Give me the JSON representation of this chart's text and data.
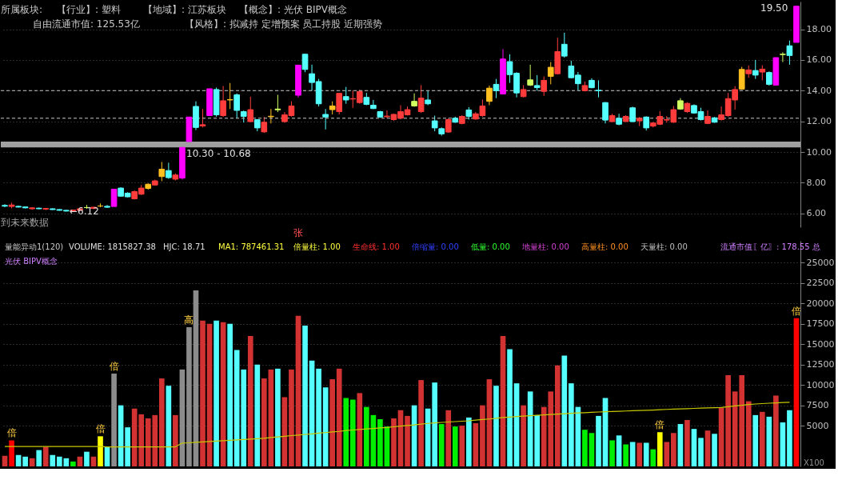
{
  "chart_data": [
    {
      "type": "candlestick",
      "categories": [
        null,
        null,
        null,
        null,
        null,
        null,
        null,
        null,
        null,
        null,
        null,
        null,
        null,
        null,
        null,
        null,
        null,
        null,
        null,
        null,
        null,
        null,
        null,
        null,
        null,
        null,
        null,
        null,
        null,
        null,
        null,
        null,
        null,
        null,
        null,
        null,
        null,
        null,
        null,
        null,
        null,
        null,
        null,
        null,
        null,
        null,
        null,
        null,
        null,
        null,
        null,
        null,
        null,
        null,
        null,
        null,
        null,
        null,
        null,
        null,
        null,
        null,
        null,
        null,
        null,
        null,
        null,
        null,
        null,
        null,
        null,
        null,
        null,
        null,
        null,
        null,
        null,
        null,
        null,
        null,
        null,
        null,
        null,
        null,
        null,
        null,
        null,
        null,
        null,
        null,
        null,
        null,
        null,
        null,
        null,
        null,
        null,
        null,
        null,
        null,
        null,
        null,
        null,
        null,
        null,
        null,
        null,
        null,
        null,
        null,
        null,
        null,
        null,
        null,
        null,
        null,
        null
      ],
      "ohlc": [
        [
          6.52,
          6.6,
          6.4,
          6.47
        ],
        [
          6.45,
          6.7,
          6.33,
          6.55
        ],
        [
          6.46,
          6.5,
          6.38,
          6.41
        ],
        [
          6.42,
          6.45,
          6.33,
          6.36
        ],
        [
          6.3,
          6.4,
          6.25,
          6.36
        ],
        [
          6.34,
          6.38,
          6.27,
          6.3
        ],
        [
          6.28,
          6.36,
          6.22,
          6.32
        ],
        [
          6.3,
          6.33,
          6.22,
          6.25
        ],
        [
          6.25,
          6.28,
          6.17,
          6.2
        ],
        [
          6.2,
          6.22,
          6.12,
          6.15
        ],
        [
          6.16,
          6.25,
          6.14,
          6.22
        ],
        [
          6.2,
          6.33,
          6.16,
          6.3
        ],
        [
          6.38,
          6.55,
          6.3,
          6.38
        ],
        [
          6.32,
          6.42,
          6.28,
          6.4
        ],
        [
          6.48,
          6.65,
          6.4,
          6.48
        ],
        [
          6.46,
          6.55,
          6.36,
          6.4
        ],
        [
          6.45,
          7.58,
          6.45,
          7.58
        ],
        [
          7.65,
          7.7,
          7.09,
          7.12
        ],
        [
          7.32,
          7.38,
          7.05,
          7.08
        ],
        [
          6.95,
          7.5,
          6.9,
          7.42
        ],
        [
          7.25,
          7.85,
          7.2,
          7.65
        ],
        [
          7.63,
          7.95,
          7.55,
          7.9
        ],
        [
          7.85,
          8.2,
          7.8,
          8.12
        ],
        [
          8.4,
          9.35,
          8.1,
          8.88
        ],
        [
          8.79,
          9.3,
          8.25,
          8.33
        ],
        [
          8.23,
          8.6,
          8.15,
          8.5
        ],
        [
          8.3,
          10.3,
          8.2,
          10.3
        ],
        [
          10.68,
          12.28,
          10.68,
          12.28
        ],
        [
          12.97,
          13.3,
          11.43,
          11.6
        ],
        [
          11.7,
          12.8,
          11.6,
          11.78
        ],
        [
          12.37,
          14.12,
          12.37,
          14.12
        ],
        [
          14.07,
          14.2,
          12.3,
          12.42
        ],
        [
          12.37,
          14.3,
          12.28,
          13.34
        ],
        [
          13.39,
          14.5,
          12.8,
          13.42
        ],
        [
          13.73,
          13.82,
          12.2,
          12.71
        ],
        [
          12.63,
          12.7,
          11.92,
          12.32
        ],
        [
          11.98,
          13.61,
          11.95,
          12.76
        ],
        [
          12.11,
          12.15,
          11.35,
          11.57
        ],
        [
          11.31,
          12.28,
          11.25,
          11.94
        ],
        [
          12.3,
          12.8,
          11.86,
          12.33
        ],
        [
          12.75,
          13.73,
          12.6,
          12.8
        ],
        [
          11.98,
          12.6,
          11.9,
          12.42
        ],
        [
          12.37,
          13.3,
          12.3,
          13.0
        ],
        [
          13.7,
          15.66,
          13.55,
          15.66
        ],
        [
          16.37,
          16.4,
          15.2,
          15.38
        ],
        [
          15.1,
          15.69,
          13.99,
          14.53
        ],
        [
          14.59,
          14.76,
          12.97,
          13.14
        ],
        [
          12.45,
          12.8,
          11.47,
          12.28
        ],
        [
          12.76,
          13.3,
          12.45,
          13.0
        ],
        [
          12.63,
          13.82,
          12.45,
          13.82
        ],
        [
          13.61,
          14.24,
          13.14,
          13.39
        ],
        [
          13.45,
          13.99,
          12.88,
          13.48
        ],
        [
          13.22,
          14.05,
          13.15,
          13.94
        ],
        [
          13.56,
          13.85,
          13.05,
          13.1
        ],
        [
          13.05,
          13.39,
          12.8,
          12.83
        ],
        [
          12.63,
          12.68,
          12.22,
          12.28
        ],
        [
          12.3,
          12.71,
          12.2,
          12.34
        ],
        [
          12.11,
          12.5,
          12.03,
          12.45
        ],
        [
          12.2,
          13.05,
          12.15,
          12.63
        ],
        [
          12.42,
          12.97,
          12.38,
          12.76
        ],
        [
          13.0,
          13.82,
          12.95,
          13.3
        ],
        [
          12.63,
          14.36,
          12.55,
          13.51
        ],
        [
          13.39,
          13.99,
          13.05,
          13.14
        ],
        [
          12.03,
          12.37,
          11.35,
          11.57
        ],
        [
          11.52,
          11.6,
          11.06,
          11.18
        ],
        [
          11.3,
          12.2,
          11.25,
          12.11
        ],
        [
          12.2,
          12.3,
          11.9,
          11.94
        ],
        [
          11.86,
          12.4,
          11.8,
          12.32
        ],
        [
          12.74,
          12.92,
          12.11,
          12.32
        ],
        [
          12.15,
          12.6,
          12.1,
          12.49
        ],
        [
          12.37,
          13.42,
          12.3,
          13.0
        ],
        [
          13.3,
          14.33,
          13.05,
          14.16
        ],
        [
          14.41,
          14.76,
          13.51,
          13.99
        ],
        [
          13.78,
          16.7,
          13.75,
          16.06
        ],
        [
          15.89,
          16.37,
          14.5,
          15.04
        ],
        [
          15.13,
          15.2,
          13.56,
          13.85
        ],
        [
          13.61,
          14.36,
          13.55,
          14.07
        ],
        [
          14.36,
          15.69,
          14.3,
          14.7
        ],
        [
          14.33,
          15.01,
          13.99,
          14.19
        ],
        [
          13.95,
          14.93,
          13.65,
          14.67
        ],
        [
          14.93,
          15.86,
          14.41,
          15.52
        ],
        [
          15.1,
          17.44,
          15.05,
          16.54
        ],
        [
          17.02,
          17.77,
          16.15,
          16.25
        ],
        [
          15.6,
          15.95,
          14.8,
          14.84
        ],
        [
          15.01,
          15.21,
          14.02,
          14.45
        ],
        [
          13.99,
          14.59,
          13.95,
          14.33
        ],
        [
          14.67,
          14.8,
          14.15,
          14.19
        ],
        [
          14.02,
          14.67,
          13.56,
          13.99
        ],
        [
          13.22,
          13.25,
          11.86,
          12.08
        ],
        [
          11.98,
          12.49,
          11.95,
          12.37
        ],
        [
          12.2,
          12.49,
          11.74,
          11.81
        ],
        [
          11.99,
          12.4,
          11.95,
          12.32
        ],
        [
          12.88,
          12.95,
          11.95,
          11.98
        ],
        [
          12.03,
          12.28,
          11.69,
          12.2
        ],
        [
          12.28,
          12.32,
          11.4,
          11.57
        ],
        [
          11.69,
          11.95,
          11.6,
          11.89
        ],
        [
          11.81,
          12.66,
          11.75,
          12.32
        ],
        [
          12.08,
          12.34,
          11.91,
          12.11
        ],
        [
          11.94,
          13.0,
          11.9,
          12.76
        ],
        [
          12.8,
          13.51,
          12.75,
          13.34
        ],
        [
          12.63,
          13.25,
          12.55,
          13.17
        ],
        [
          13.03,
          13.1,
          12.5,
          12.54
        ],
        [
          12.63,
          12.88,
          12.05,
          12.11
        ],
        [
          11.86,
          12.71,
          11.82,
          12.32
        ],
        [
          12.23,
          12.28,
          11.9,
          11.94
        ],
        [
          12.11,
          12.97,
          12.05,
          12.42
        ],
        [
          12.37,
          13.85,
          12.3,
          13.48
        ],
        [
          13.39,
          14.29,
          12.76,
          14.07
        ],
        [
          14.1,
          15.55,
          14.05,
          15.38
        ],
        [
          15.1,
          15.64,
          14.84,
          15.35
        ],
        [
          15.31,
          16.0,
          14.76,
          15.01
        ],
        [
          15.21,
          15.65,
          14.67,
          15.4
        ],
        [
          15.18,
          15.25,
          14.33,
          14.41
        ],
        [
          14.36,
          16.15,
          14.36,
          16.15
        ],
        [
          16.35,
          16.5,
          15.86,
          16.37
        ],
        [
          16.92,
          17.26,
          15.69,
          16.29
        ],
        [
          17.14,
          19.5,
          17.14,
          19.5
        ]
      ],
      "colors": [
        "#55ffff",
        "#ff3c3c",
        "#55ffff",
        "#55ffff",
        "#ff3c3c",
        "#55ffff",
        "#ff3c3c",
        "#55ffff",
        "#55ffff",
        "#55ffff",
        "#ff3c3c",
        "#ff3c3c",
        "#d0ff60",
        "#ff3c3c",
        "#ffc020",
        "#55ffff",
        "#ff00ff",
        "#55ffff",
        "#55ffff",
        "#ff3c3c",
        "#ff3c3c",
        "#ffc020",
        "#ff3c3c",
        "#ffc020",
        "#55ffff",
        "#ff3c3c",
        "#ff00ff",
        "#ff00ff",
        "#55ffff",
        "#ff3c3c",
        "#ff00ff",
        "#55ffff",
        "#ff3c3c",
        "#ffc020",
        "#55ffff",
        "#55ffff",
        "#ff3c3c",
        "#55ffff",
        "#ff3c3c",
        "#ffc020",
        "#d0ff60",
        "#ff3c3c",
        "#ff3c3c",
        "#ff00ff",
        "#55ffff",
        "#55ffff",
        "#55ffff",
        "#55ffff",
        "#ffc020",
        "#ff3c3c",
        "#55ffff",
        "#ff3c3c",
        "#ff3c3c",
        "#55ffff",
        "#55ffff",
        "#55ffff",
        "#ff3c3c",
        "#ff3c3c",
        "#ff3c3c",
        "#ff3c3c",
        "#d0ff60",
        "#ff3c3c",
        "#55ffff",
        "#55ffff",
        "#55ffff",
        "#ff3c3c",
        "#55ffff",
        "#ff3c3c",
        "#55ffff",
        "#ff3c3c",
        "#ff3c3c",
        "#ffc020",
        "#55ffff",
        "#ff00ff",
        "#55ffff",
        "#55ffff",
        "#ff3c3c",
        "#d0ff60",
        "#55ffff",
        "#ff3c3c",
        "#ffc020",
        "#ff3c3c",
        "#55ffff",
        "#55ffff",
        "#55ffff",
        "#ff3c3c",
        "#55ffff",
        "#55ffff",
        "#55ffff",
        "#ff3c3c",
        "#55ffff",
        "#ff3c3c",
        "#55ffff",
        "#ff3c3c",
        "#55ffff",
        "#ff3c3c",
        "#ff3c3c",
        "#ff3c3c",
        "#ff3c3c",
        "#d0ff60",
        "#ff3c3c",
        "#55ffff",
        "#55ffff",
        "#ff3c3c",
        "#55ffff",
        "#ff3c3c",
        "#ff3c3c",
        "#ff3c3c",
        "#ffc020",
        "#ff3c3c",
        "#55ffff",
        "#ff3c3c",
        "#55ffff",
        "#ff00ff",
        "#d0ff60",
        "#55ffff",
        "#ff00ff"
      ],
      "ylim": [
        5.1,
        19.8
      ],
      "yticks": [
        {
          "value": 6,
          "label": "6.00"
        },
        {
          "value": 8,
          "label": "8.00"
        },
        {
          "value": 10,
          "label": "10.00"
        },
        {
          "value": 12,
          "label": "12.00"
        },
        {
          "value": 14,
          "label": "14.00"
        },
        {
          "value": 16,
          "label": "16.00"
        },
        {
          "value": 18,
          "label": "18.00"
        }
      ],
      "grid": "y",
      "tick_labels": "y",
      "bands": [
        {
          "axis": "y",
          "from": 10.3,
          "to": 10.68,
          "label": "10.30 - 10.68",
          "color": "#a0a0a0"
        }
      ],
      "ref_lines": [
        {
          "axis": "y",
          "value": 14.0,
          "color": "#c8c8c8",
          "line_style": "dashed"
        },
        {
          "axis": "y",
          "value": 12.2,
          "color": "#c8c8c8",
          "line_style": "dashed"
        }
      ],
      "annotations": [
        "所属板块:",
        "【行业】: 塑料",
        "【地域】: 江苏板块",
        "【概念】: 光伏 BIPV概念",
        "自由流通市值: 125.53亿",
        "【风格】: 拟减持 定增预案 员工持股 近期强势",
        "到未来数据",
        {
          "text": "←6.12",
          "y": 6.12
        },
        "张",
        "19.50"
      ]
    },
    {
      "type": "bar",
      "categories": [
        null,
        null,
        null,
        null,
        null,
        null,
        null,
        null,
        null,
        null,
        null,
        null,
        null,
        null,
        null,
        null,
        null,
        null,
        null,
        null,
        null,
        null,
        null,
        null,
        null,
        null,
        null,
        null,
        null,
        null,
        null,
        null,
        null,
        null,
        null,
        null,
        null,
        null,
        null,
        null,
        null,
        null,
        null,
        null,
        null,
        null,
        null,
        null,
        null,
        null,
        null,
        null,
        null,
        null,
        null,
        null,
        null,
        null,
        null,
        null,
        null,
        null,
        null,
        null,
        null,
        null,
        null,
        null,
        null,
        null,
        null,
        null,
        null,
        null,
        null,
        null,
        null,
        null,
        null,
        null,
        null,
        null,
        null,
        null,
        null,
        null,
        null,
        null,
        null,
        null,
        null,
        null,
        null,
        null,
        null,
        null,
        null,
        null,
        null,
        null,
        null,
        null,
        null,
        null,
        null,
        null,
        null,
        null,
        null,
        null,
        null,
        null,
        null,
        null,
        null,
        null,
        null
      ],
      "series": [
        {
          "type": "bar",
          "values": [
            1300,
            3200,
            1400,
            1200,
            1000,
            2000,
            2400,
            1400,
            1200,
            1000,
            600,
            1200,
            1800,
            1200,
            3700,
            2400,
            11400,
            7500,
            4800,
            7100,
            6400,
            5900,
            6300,
            10800,
            9900,
            6300,
            11900,
            17100,
            21600,
            17900,
            17500,
            17900,
            17700,
            17500,
            14300,
            11900,
            16000,
            12500,
            10800,
            11900,
            12000,
            8500,
            11900,
            18500,
            17300,
            13000,
            12000,
            9700,
            10700,
            12000,
            8400,
            8200,
            9000,
            7300,
            6300,
            5800,
            4900,
            5900,
            6900,
            6200,
            7500,
            10600,
            7100,
            10300,
            5200,
            6900,
            4900,
            5000,
            6000,
            5300,
            7500,
            10700,
            9900,
            16000,
            14400,
            10200,
            7500,
            9200,
            6300,
            7300,
            9200,
            12400,
            13600,
            10200,
            7300,
            4500,
            4100,
            6200,
            8400,
            3200,
            3800,
            2700,
            3000,
            2900,
            2900,
            2100,
            4200,
            3000,
            4100,
            5200,
            5700,
            4600,
            3500,
            4400,
            4000,
            7200,
            11200,
            9200,
            11200,
            8000,
            6300,
            6700,
            6100,
            8700,
            5400,
            6900,
            18200
          ],
          "colors": [
            "#d23232",
            "#ff0000",
            "#55ffff",
            "#55ffff",
            "#d23232",
            "#55ffff",
            "#d23232",
            "#55ffff",
            "#55ffff",
            "#55ffff",
            "#00ee00",
            "#d23232",
            "#55ffff",
            "#d23232",
            "#ffff00",
            "#55ffff",
            "#8c8c8c",
            "#55ffff",
            "#55ffff",
            "#d23232",
            "#d23232",
            "#d23232",
            "#d23232",
            "#d23232",
            "#55ffff",
            "#d23232",
            "#8c8c8c",
            "#8c8c8c",
            "#8c8c8c",
            "#d23232",
            "#d23232",
            "#55ffff",
            "#d23232",
            "#55ffff",
            "#55ffff",
            "#55ffff",
            "#d23232",
            "#55ffff",
            "#d23232",
            "#d23232",
            "#55ffff",
            "#d23232",
            "#d23232",
            "#d23232",
            "#55ffff",
            "#55ffff",
            "#55ffff",
            "#55ffff",
            "#d23232",
            "#d23232",
            "#00ee00",
            "#00ee00",
            "#d23232",
            "#00ee00",
            "#00ee00",
            "#00ee00",
            "#00ee00",
            "#d23232",
            "#d23232",
            "#d23232",
            "#55ffff",
            "#d23232",
            "#55ffff",
            "#55ffff",
            "#00ee00",
            "#d23232",
            "#00ee00",
            "#d23232",
            "#55ffff",
            "#d23232",
            "#d23232",
            "#d23232",
            "#55ffff",
            "#d23232",
            "#55ffff",
            "#55ffff",
            "#d23232",
            "#55ffff",
            "#55ffff",
            "#d23232",
            "#d23232",
            "#d23232",
            "#55ffff",
            "#55ffff",
            "#55ffff",
            "#00ee00",
            "#00ee00",
            "#55ffff",
            "#55ffff",
            "#00ee00",
            "#55ffff",
            "#00ee00",
            "#55ffff",
            "#d23232",
            "#55ffff",
            "#00ee00",
            "#ffff00",
            "#d23232",
            "#d23232",
            "#55ffff",
            "#d23232",
            "#55ffff",
            "#55ffff",
            "#d23232",
            "#55ffff",
            "#d23232",
            "#d23232",
            "#d23232",
            "#d23232",
            "#d23232",
            "#55ffff",
            "#d23232",
            "#55ffff",
            "#d23232",
            "#55ffff",
            "#55ffff",
            "#ff0000"
          ],
          "value_labels": [
            null,
            "倍",
            null,
            null,
            null,
            null,
            null,
            null,
            null,
            null,
            null,
            null,
            null,
            null,
            "倍",
            null,
            "倍",
            null,
            null,
            null,
            null,
            null,
            null,
            null,
            null,
            null,
            null,
            "高",
            null,
            null,
            null,
            null,
            null,
            null,
            null,
            null,
            null,
            null,
            null,
            null,
            null,
            null,
            null,
            null,
            null,
            null,
            null,
            null,
            null,
            null,
            null,
            null,
            null,
            null,
            null,
            null,
            null,
            null,
            null,
            null,
            null,
            null,
            null,
            null,
            null,
            null,
            null,
            null,
            null,
            null,
            null,
            null,
            null,
            null,
            null,
            null,
            null,
            null,
            null,
            null,
            null,
            null,
            null,
            null,
            null,
            null,
            null,
            null,
            null,
            null,
            null,
            null,
            null,
            null,
            null,
            null,
            "倍",
            null,
            null,
            null,
            null,
            null,
            null,
            null,
            null,
            null,
            null,
            null,
            null,
            null,
            null,
            null,
            null,
            null,
            null,
            null,
            "倍"
          ]
        },
        {
          "type": "line",
          "color": "#c8c800",
          "values": [
            2450,
            2450,
            2450,
            2450,
            2450,
            2450,
            2450,
            2450,
            2450,
            2450,
            2450,
            2450,
            2450,
            2450,
            2450,
            2400,
            2400,
            2400,
            2400,
            2400,
            2400,
            2400,
            2400,
            2400,
            2400,
            2400,
            2870,
            2900,
            2950,
            3000,
            3050,
            3100,
            3150,
            3200,
            3250,
            3300,
            3350,
            3400,
            3450,
            3550,
            3620,
            3700,
            3780,
            3850,
            3930,
            4000,
            4080,
            4150,
            4230,
            4300,
            4400,
            4470,
            4540,
            4600,
            4660,
            4720,
            4780,
            4860,
            4940,
            5020,
            5100,
            5200,
            5280,
            5350,
            5400,
            5450,
            5500,
            5550,
            5600,
            5680,
            5750,
            5820,
            5900,
            6000,
            6060,
            6120,
            6180,
            6230,
            6280,
            6330,
            6380,
            6430,
            6480,
            6520,
            6560,
            6600,
            6640,
            6680,
            6710,
            6740,
            6770,
            6800,
            6830,
            6860,
            6890,
            6920,
            6960,
            7000,
            7030,
            7060,
            7090,
            7120,
            7150,
            7180,
            7210,
            7240,
            7330,
            7420,
            7500,
            7600,
            7660,
            7710,
            7760,
            7800,
            7840,
            7870,
            null
          ]
        }
      ],
      "ylim": [
        0,
        27700
      ],
      "yticks": [
        5000,
        7500,
        10000,
        12500,
        15000,
        17500,
        20000,
        22500,
        25000
      ],
      "grid": "y",
      "tick_labels": "y",
      "annotations": [
        "量能异动1(120)",
        "VOLUME: 1815827.38",
        "HJC: 18.71",
        "MA1: 787461.31",
        "倍量柱: 1.00",
        "生命线: 1.00",
        "倍缩量: 0.00",
        "低量: 0.00",
        "地量柱: 0.00",
        "高量柱: 0.00",
        "天量柱: 0.00",
        "流通市值〖亿〗: 178.55 总",
        "光伏 BIPV概念",
        "X100"
      ]
    }
  ]
}
